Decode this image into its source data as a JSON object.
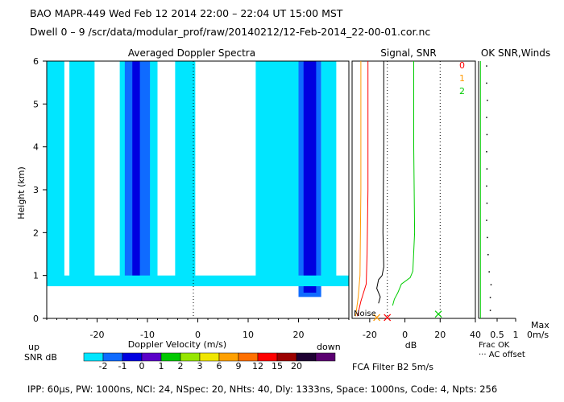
{
  "header": {
    "line1": "BAO  MAPR-449  Wed Feb 12 2014 22:00 – 22:04 UT 15:00 MST",
    "line2": "Dwell  0 –  9   /scr/data/modular_prof/raw/20140212/12-Feb-2014_22-00-01.cor.nc"
  },
  "chart_data": [
    {
      "type": "heatmap",
      "title": "Averaged Doppler Spectra",
      "xlabel": "Doppler Velocity (m/s)",
      "ylabel": "Height (km)",
      "xlim": [
        -30,
        30
      ],
      "ylim": [
        0,
        6
      ],
      "x_ticks": [
        "-20",
        "-10",
        "0",
        "10",
        "20"
      ],
      "y_ticks": [
        "0",
        "1",
        "2",
        "3",
        "4",
        "5",
        "6"
      ],
      "x_end_labels": {
        "left": "up",
        "right": "down"
      },
      "colorbar_label": "SNR dB",
      "colorbar_ticks": [
        "-2",
        "-1",
        "0",
        "1",
        "2",
        "3",
        "6",
        "9",
        "12",
        "15",
        "20"
      ],
      "colorbar_colors": [
        "#00e6ff",
        "#0f6bff",
        "#0000e0",
        "#5a00c8",
        "#00c800",
        "#96e600",
        "#f0e600",
        "#ffa000",
        "#ff7000",
        "#ff0000",
        "#9b0000",
        "#1e0032",
        "#5a0070"
      ],
      "signal_bands": [
        {
          "vmin": -30,
          "vmax": -26.5,
          "hmin": 0.85,
          "hmax": 6.0,
          "snr_db": -2
        },
        {
          "vmin": -25.5,
          "vmax": -20.5,
          "hmin": 0.85,
          "hmax": 6.0,
          "snr_db": -2
        },
        {
          "vmin": -15.5,
          "vmax": -8,
          "hmin": 0.75,
          "hmax": 6.0,
          "snr_db": -2
        },
        {
          "vmin": -14.5,
          "vmax": -9.5,
          "hmin": 0.75,
          "hmax": 6.0,
          "snr_db": -1
        },
        {
          "vmin": -13,
          "vmax": -11.5,
          "hmin": 0.75,
          "hmax": 6.0,
          "snr_db": 0
        },
        {
          "vmin": -4.5,
          "vmax": -0.5,
          "hmin": 0.75,
          "hmax": 6.0,
          "snr_db": -2
        },
        {
          "vmin": 11.5,
          "vmax": 20,
          "hmin": 0.75,
          "hmax": 6.0,
          "snr_db": -2
        },
        {
          "vmin": 20,
          "vmax": 24.5,
          "hmin": 0.5,
          "hmax": 6.0,
          "snr_db": -1
        },
        {
          "vmin": 21,
          "vmax": 23.5,
          "hmin": 0.6,
          "hmax": 6.0,
          "snr_db": 0
        },
        {
          "vmin": 24.5,
          "vmax": 27.5,
          "hmin": 0.75,
          "hmax": 6.0,
          "snr_db": -2
        },
        {
          "vmin": -30,
          "vmax": 30,
          "hmin": 0.75,
          "hmax": 1.0,
          "snr_db": -2
        }
      ],
      "zero_line": 0
    },
    {
      "type": "line",
      "title": "Signal, SNR",
      "xlabel": "dB",
      "xlim": [
        -30,
        40
      ],
      "ylim": [
        0,
        6
      ],
      "x_ticks": [
        "-20",
        "0",
        "20",
        "40"
      ],
      "legend": [
        "0",
        "1",
        "2"
      ],
      "legend_colors": [
        "#ff0000",
        "#ff9900",
        "#00cc00"
      ],
      "noise_label": "Noise",
      "reference_lines": [
        -10,
        20
      ],
      "series": [
        {
          "name": "SNR",
          "color": "#00cc00",
          "points": [
            [
              5,
              6.0
            ],
            [
              5,
              4.0
            ],
            [
              5.5,
              2.0
            ],
            [
              4.5,
              1.1
            ],
            [
              3,
              0.95
            ],
            [
              -2,
              0.8
            ],
            [
              -4,
              0.6
            ],
            [
              -6,
              0.45
            ],
            [
              -7,
              0.3
            ]
          ]
        },
        {
          "name": "Signal",
          "color": "#000000",
          "points": [
            [
              -12,
              6.0
            ],
            [
              -12,
              4.0
            ],
            [
              -12.5,
              2.0
            ],
            [
              -12,
              1.2
            ],
            [
              -13,
              1.0
            ],
            [
              -15,
              0.9
            ],
            [
              -16,
              0.7
            ],
            [
              -14,
              0.5
            ],
            [
              -15,
              0.35
            ]
          ]
        },
        {
          "name": "Noise 0",
          "color": "#ff0000",
          "points": [
            [
              -21,
              6.0
            ],
            [
              -21,
              3.0
            ],
            [
              -21.5,
              1.5
            ],
            [
              -22,
              0.8
            ],
            [
              -25,
              0.4
            ],
            [
              -27,
              0.05
            ]
          ]
        },
        {
          "name": "Noise 1",
          "color": "#ff9900",
          "points": [
            [
              -25,
              6.0
            ],
            [
              -25,
              3.0
            ],
            [
              -25.5,
              1.0
            ],
            [
              -26.5,
              0.5
            ],
            [
              -28,
              0.05
            ]
          ]
        }
      ],
      "markers": [
        {
          "x": -16,
          "y": 0.02,
          "color": "#ff9900"
        },
        {
          "x": -10,
          "y": 0.02,
          "color": "#ff0000"
        },
        {
          "x": 19,
          "y": 0.1,
          "color": "#00cc00"
        }
      ]
    },
    {
      "type": "scatter",
      "title": "OK  SNR,Winds",
      "xlim": [
        0,
        1
      ],
      "ylim": [
        0,
        6
      ],
      "x_ticks": [
        "0.5",
        "1"
      ],
      "max_label": "Max",
      "max_value": "0m/s",
      "footnote1": "Frac OK",
      "footnote2": "··· AC offset",
      "frac_ok_line": {
        "color": "#00cc00",
        "x": 0.05
      },
      "points": [
        [
          0.2,
          5.9
        ],
        [
          0.2,
          5.5
        ],
        [
          0.22,
          5.1
        ],
        [
          0.2,
          4.7
        ],
        [
          0.21,
          4.3
        ],
        [
          0.2,
          3.9
        ],
        [
          0.21,
          3.5
        ],
        [
          0.2,
          3.1
        ],
        [
          0.21,
          2.7
        ],
        [
          0.2,
          2.3
        ],
        [
          0.22,
          1.9
        ],
        [
          0.24,
          1.5
        ],
        [
          0.27,
          1.1
        ],
        [
          0.32,
          0.8
        ],
        [
          0.3,
          0.5
        ],
        [
          0.3,
          0.2
        ]
      ]
    }
  ],
  "filter_label": "FCA Filter B2  5m/s",
  "footer": "IPP:  60μs,  PW: 1000ns,  NCI:  24,  NSpec: 20, NHts: 40,  Dly: 1333ns,  Space: 1000ns,  Code: 4,  Npts: 256"
}
